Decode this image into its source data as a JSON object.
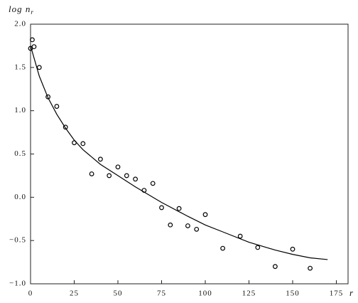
{
  "chart_data": {
    "type": "scatter",
    "ylabel": "log n",
    "ylabel_subscript": "r",
    "xlabel": "r",
    "xlim": [
      0,
      175
    ],
    "ylim": [
      -1.0,
      2.0
    ],
    "xticks": [
      0,
      25,
      50,
      75,
      100,
      125,
      150,
      175
    ],
    "yticks": [
      {
        "value": 2.0,
        "label": "2.0"
      },
      {
        "value": 1.5,
        "label": "1.5"
      },
      {
        "value": 1.0,
        "label": "1.0"
      },
      {
        "value": 0.5,
        "label": "0.5"
      },
      {
        "value": 0.0,
        "label": "0.0"
      },
      {
        "value": -0.5,
        "label": "−0.5"
      },
      {
        "value": -1.0,
        "label": "−1.0"
      }
    ],
    "series": [
      {
        "type": "scatter",
        "color": "#000000",
        "x": [
          1,
          0,
          2,
          5,
          10,
          15,
          20,
          25,
          30,
          35,
          40,
          45,
          50,
          55,
          60,
          65,
          70,
          75,
          80,
          85,
          90,
          95,
          100,
          110,
          120,
          130,
          140,
          150,
          160
        ],
        "values": [
          1.82,
          1.72,
          1.74,
          1.5,
          1.16,
          1.05,
          0.81,
          0.63,
          0.62,
          0.27,
          0.44,
          0.25,
          0.35,
          0.25,
          0.21,
          0.08,
          0.16,
          -0.12,
          -0.32,
          -0.13,
          -0.33,
          -0.37,
          -0.2,
          -0.59,
          -0.45,
          -0.58,
          -0.8,
          -0.6,
          -0.82
        ]
      },
      {
        "type": "line",
        "color": "#000000",
        "x": [
          0,
          5,
          10,
          15,
          20,
          25,
          30,
          40,
          50,
          60,
          75,
          90,
          100,
          110,
          125,
          140,
          150,
          160,
          170
        ],
        "values": [
          1.75,
          1.4,
          1.15,
          0.96,
          0.8,
          0.66,
          0.55,
          0.38,
          0.25,
          0.12,
          -0.06,
          -0.22,
          -0.32,
          -0.4,
          -0.52,
          -0.61,
          -0.66,
          -0.7,
          -0.72
        ]
      }
    ]
  }
}
